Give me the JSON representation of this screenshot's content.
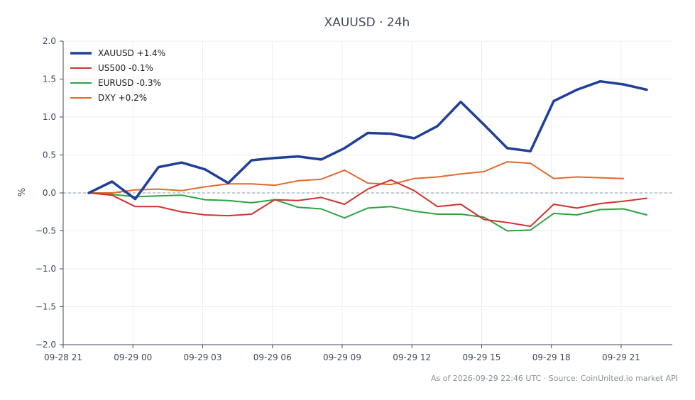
{
  "chart_data": {
    "type": "line",
    "title": "XAUUSD · 24h",
    "ylabel": "%",
    "xlabel": "",
    "ylim": [
      -2.0,
      2.0
    ],
    "yticks": [
      "2.0",
      "1.5",
      "1.0",
      "0.5",
      "0.0",
      "−0.5",
      "−1.0",
      "−1.5",
      "−2.0"
    ],
    "ytick_values": [
      2.0,
      1.5,
      1.0,
      0.5,
      0.0,
      -0.5,
      -1.0,
      -1.5,
      -2.0
    ],
    "xticks": [
      "09-28 21",
      "09-29 00",
      "09-29 03",
      "09-29 06",
      "09-29 09",
      "09-29 12",
      "09-29 15",
      "09-29 18",
      "09-29 21"
    ],
    "xtick_hours": [
      21,
      24,
      27,
      30,
      33,
      36,
      39,
      42,
      45
    ],
    "xlim_hours": [
      21,
      47.2
    ],
    "grid": true,
    "legend_position": "top-left",
    "series": [
      {
        "name": "XAUUSD +1.4%",
        "color": "#1f3f99",
        "width": 3.5,
        "x": [
          22.1,
          23.1,
          24.1,
          25.1,
          26.1,
          27.1,
          28.1,
          29.1,
          30.1,
          31.1,
          32.1,
          33.1,
          34.1,
          35.1,
          36.1,
          37.1,
          38.1,
          39.1,
          40.1,
          41.1,
          42.1,
          43.1,
          44.1,
          45.1,
          46.1
        ],
        "values": [
          0.0,
          0.15,
          -0.08,
          0.34,
          0.4,
          0.31,
          0.13,
          0.43,
          0.46,
          0.48,
          0.44,
          0.59,
          0.79,
          0.78,
          0.72,
          0.88,
          1.2,
          0.9,
          0.59,
          0.55,
          1.21,
          1.36,
          1.47,
          1.43,
          1.36
        ]
      },
      {
        "name": "US500 -0.1%",
        "color": "#d1322e",
        "width": 2,
        "x": [
          22.1,
          23.1,
          24.1,
          25.1,
          26.1,
          27.1,
          28.1,
          29.1,
          30.1,
          31.1,
          32.1,
          33.1,
          34.1,
          35.1,
          36.1,
          37.1,
          38.1,
          39.1,
          40.1,
          41.1,
          42.1,
          43.1,
          44.1,
          45.1,
          46.1
        ],
        "values": [
          0.0,
          -0.03,
          -0.18,
          -0.18,
          -0.25,
          -0.29,
          -0.3,
          -0.28,
          -0.09,
          -0.1,
          -0.06,
          -0.15,
          0.05,
          0.17,
          0.03,
          -0.18,
          -0.15,
          -0.35,
          -0.39,
          -0.44,
          -0.15,
          -0.2,
          -0.14,
          -0.11,
          -0.07
        ]
      },
      {
        "name": "EURUSD -0.3%",
        "color": "#2ca342",
        "width": 2,
        "x": [
          22.1,
          23.1,
          24.1,
          25.1,
          26.1,
          27.1,
          28.1,
          29.1,
          30.1,
          31.1,
          32.1,
          33.1,
          34.1,
          35.1,
          36.1,
          37.1,
          38.1,
          39.1,
          40.1,
          41.1,
          42.1,
          43.1,
          44.1,
          45.1,
          46.1
        ],
        "values": [
          0.0,
          -0.02,
          -0.05,
          -0.04,
          -0.03,
          -0.09,
          -0.1,
          -0.13,
          -0.09,
          -0.19,
          -0.21,
          -0.33,
          -0.2,
          -0.18,
          -0.24,
          -0.28,
          -0.28,
          -0.32,
          -0.5,
          -0.49,
          -0.27,
          -0.29,
          -0.22,
          -0.21,
          -0.29
        ]
      },
      {
        "name": "DXY +0.2%",
        "color": "#e0692a",
        "width": 2,
        "x": [
          22.1,
          23.1,
          24.1,
          25.1,
          26.1,
          27.1,
          28.1,
          29.1,
          30.1,
          31.1,
          32.1,
          33.1,
          34.1,
          35.1,
          36.1,
          37.1,
          38.1,
          39.1,
          40.1,
          41.1,
          42.1,
          43.1,
          44.1,
          45.1
        ],
        "values": [
          0.0,
          0.0,
          0.04,
          0.05,
          0.03,
          0.08,
          0.12,
          0.12,
          0.1,
          0.16,
          0.18,
          0.3,
          0.13,
          0.11,
          0.19,
          0.21,
          0.25,
          0.28,
          0.41,
          0.39,
          0.19,
          0.21,
          0.2,
          0.19
        ]
      }
    ]
  },
  "footer": {
    "text": "As of 2026-09-29 22:46 UTC · Source: CoinUnited.io market API"
  }
}
